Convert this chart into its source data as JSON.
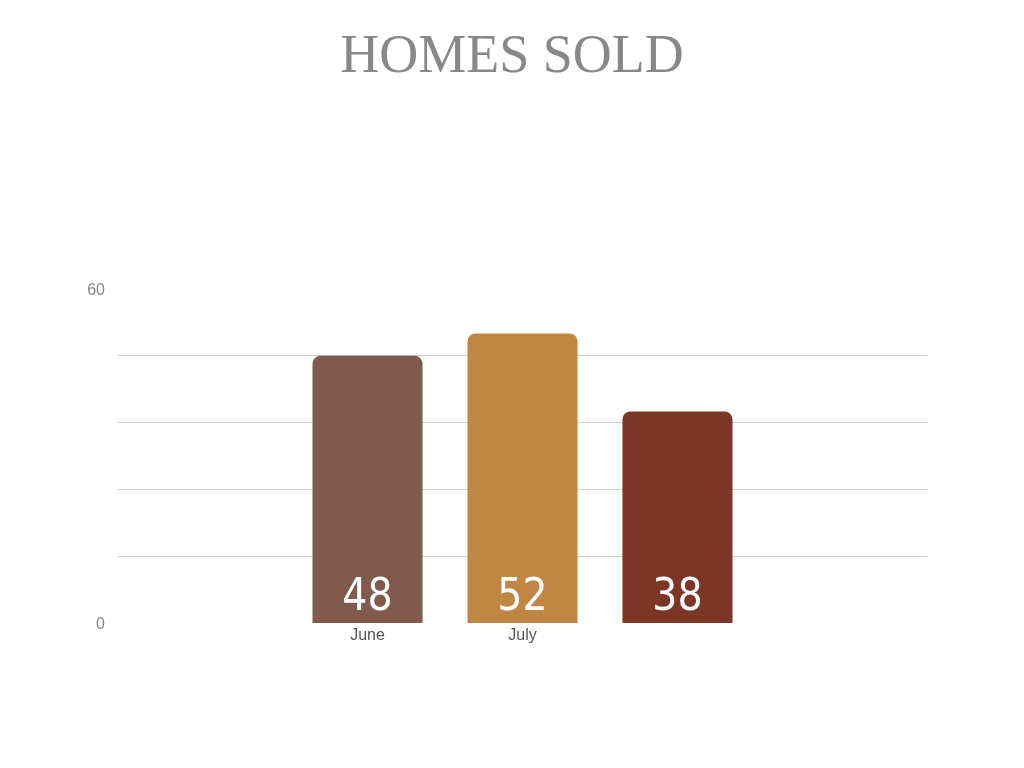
{
  "chart_data": {
    "type": "bar",
    "title": "HOMES SOLD",
    "categories": [
      "June",
      "July",
      null
    ],
    "values": [
      48,
      52,
      38
    ],
    "colors": [
      "#805a4d",
      "#c08744",
      "#7b3626"
    ],
    "ylim": [
      0,
      60
    ],
    "yticks": [
      0,
      {
        "value": 12,
        "label": null
      },
      {
        "value": 24,
        "label": null
      },
      {
        "value": 36,
        "label": null
      },
      {
        "value": 48,
        "label": null
      },
      60
    ],
    "grid": "y",
    "data_labels": true
  }
}
